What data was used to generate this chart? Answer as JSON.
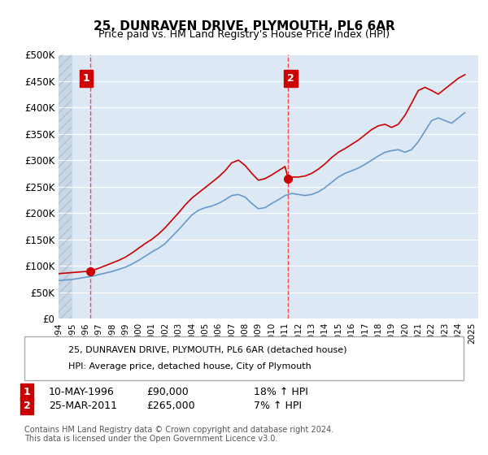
{
  "title": "25, DUNRAVEN DRIVE, PLYMOUTH, PL6 6AR",
  "subtitle": "Price paid vs. HM Land Registry's House Price Index (HPI)",
  "xlabel": "",
  "ylabel": "",
  "ylim": [
    0,
    500000
  ],
  "yticks": [
    0,
    50000,
    100000,
    150000,
    200000,
    250000,
    300000,
    350000,
    400000,
    450000,
    500000
  ],
  "ytick_labels": [
    "£0",
    "£50K",
    "£100K",
    "£150K",
    "£200K",
    "£250K",
    "£300K",
    "£350K",
    "£400K",
    "£450K",
    "£500K"
  ],
  "xlim_start": 1994.0,
  "xlim_end": 2025.5,
  "hpi_line_color": "#6699cc",
  "price_line_color": "#cc0000",
  "marker_color": "#cc0000",
  "dashed_line_color": "#ff4444",
  "background_color": "#ffffff",
  "plot_bg_color": "#dce9f5",
  "hatch_bg_color": "#c8d8e8",
  "annotation_box_color": "#cc0000",
  "legend_entry1": "25, DUNRAVEN DRIVE, PLYMOUTH, PL6 6AR (detached house)",
  "legend_entry2": "HPI: Average price, detached house, City of Plymouth",
  "sale1_label": "1",
  "sale1_date": "10-MAY-1996",
  "sale1_price": "£90,000",
  "sale1_hpi": "18% ↑ HPI",
  "sale1_year": 1996.36,
  "sale1_value": 90000,
  "sale2_label": "2",
  "sale2_date": "25-MAR-2011",
  "sale2_price": "£265,000",
  "sale2_hpi": "7% ↑ HPI",
  "sale2_year": 2011.23,
  "sale2_value": 265000,
  "footer": "Contains HM Land Registry data © Crown copyright and database right 2024.\nThis data is licensed under the Open Government Licence v3.0.",
  "hpi_data_years": [
    1994,
    1994.5,
    1995,
    1995.5,
    1996,
    1996.5,
    1997,
    1997.5,
    1998,
    1998.5,
    1999,
    1999.5,
    2000,
    2000.5,
    2001,
    2001.5,
    2002,
    2002.5,
    2003,
    2003.5,
    2004,
    2004.5,
    2005,
    2005.5,
    2006,
    2006.5,
    2007,
    2007.5,
    2008,
    2008.5,
    2009,
    2009.5,
    2010,
    2010.5,
    2011,
    2011.5,
    2012,
    2012.5,
    2013,
    2013.5,
    2014,
    2014.5,
    2015,
    2015.5,
    2016,
    2016.5,
    2017,
    2017.5,
    2018,
    2018.5,
    2019,
    2019.5,
    2020,
    2020.5,
    2021,
    2021.5,
    2022,
    2022.5,
    2023,
    2023.5,
    2024,
    2024.5
  ],
  "hpi_data_values": [
    72000,
    73000,
    74000,
    76000,
    78000,
    80000,
    83000,
    86000,
    89000,
    93000,
    97000,
    103000,
    110000,
    118000,
    126000,
    133000,
    142000,
    155000,
    168000,
    182000,
    196000,
    205000,
    210000,
    213000,
    218000,
    225000,
    233000,
    235000,
    230000,
    218000,
    208000,
    210000,
    218000,
    225000,
    233000,
    237000,
    235000,
    233000,
    235000,
    240000,
    248000,
    258000,
    268000,
    275000,
    280000,
    285000,
    292000,
    300000,
    308000,
    315000,
    318000,
    320000,
    315000,
    320000,
    335000,
    355000,
    375000,
    380000,
    375000,
    370000,
    380000,
    390000
  ],
  "price_data_years": [
    1994,
    1994.5,
    1995,
    1995.5,
    1996,
    1996.36,
    1996.5,
    1997,
    1997.5,
    1998,
    1998.5,
    1999,
    1999.5,
    2000,
    2000.5,
    2001,
    2001.5,
    2002,
    2002.5,
    2003,
    2003.5,
    2004,
    2004.5,
    2005,
    2005.5,
    2006,
    2006.5,
    2007,
    2007.5,
    2008,
    2008.5,
    2009,
    2009.5,
    2010,
    2010.5,
    2011,
    2011.23,
    2011.5,
    2012,
    2012.5,
    2013,
    2013.5,
    2014,
    2014.5,
    2015,
    2015.5,
    2016,
    2016.5,
    2017,
    2017.5,
    2018,
    2018.5,
    2019,
    2019.5,
    2020,
    2020.5,
    2021,
    2021.5,
    2022,
    2022.5,
    2023,
    2023.5,
    2024,
    2024.5
  ],
  "price_data_values": [
    85000,
    86000,
    87000,
    88000,
    89000,
    90000,
    91000,
    95000,
    100000,
    105000,
    110000,
    116000,
    124000,
    133000,
    142000,
    150000,
    160000,
    172000,
    186000,
    200000,
    215000,
    228000,
    238000,
    248000,
    258000,
    268000,
    280000,
    295000,
    300000,
    290000,
    275000,
    262000,
    265000,
    272000,
    280000,
    288000,
    265000,
    268000,
    268000,
    270000,
    275000,
    283000,
    293000,
    305000,
    315000,
    322000,
    330000,
    338000,
    348000,
    358000,
    365000,
    368000,
    362000,
    368000,
    385000,
    408000,
    432000,
    438000,
    432000,
    425000,
    435000,
    445000,
    455000,
    462000
  ]
}
